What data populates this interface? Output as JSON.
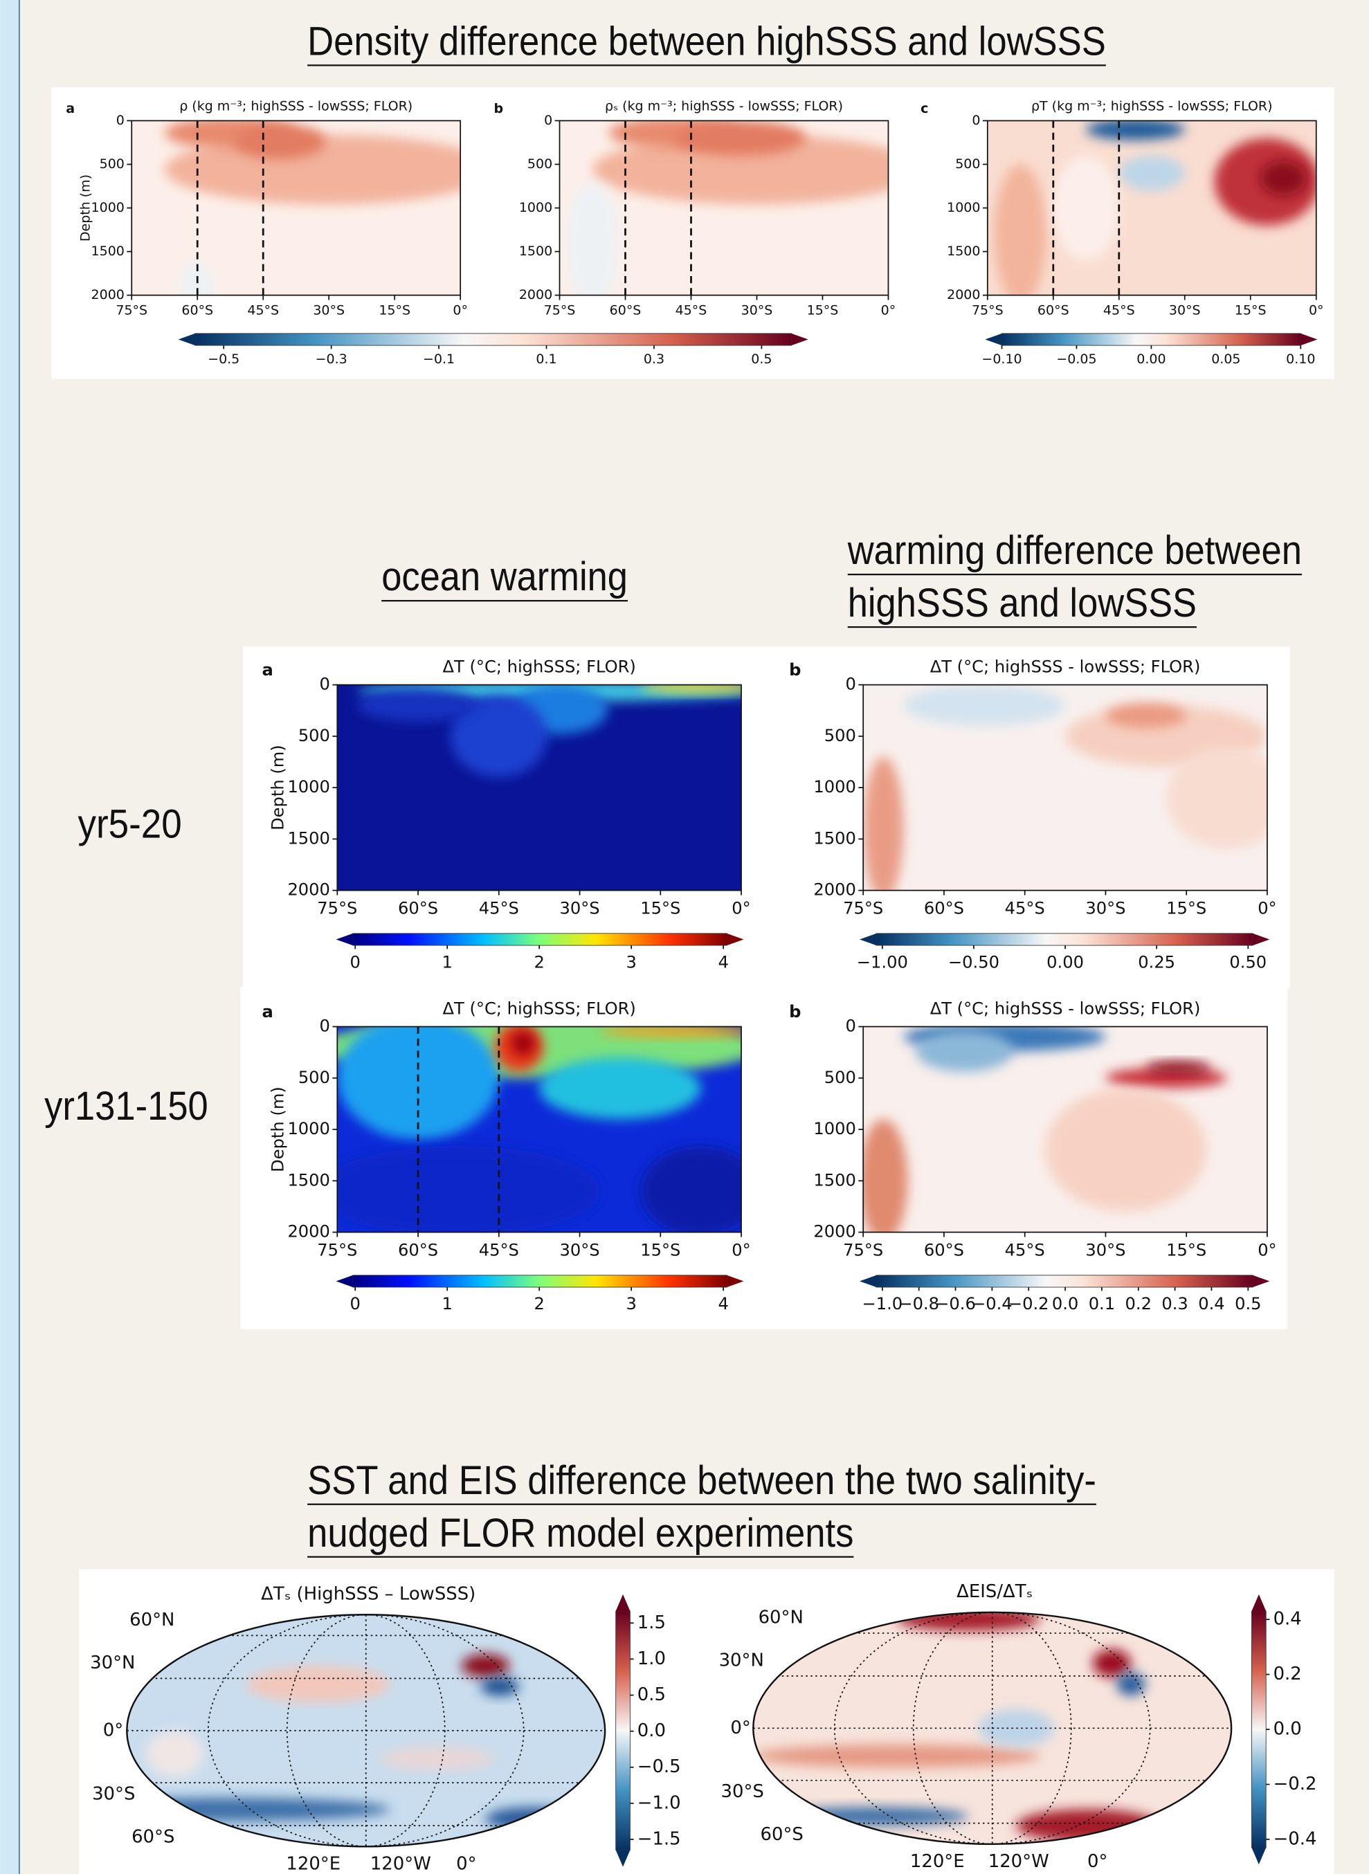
{
  "sections": [
    {
      "title": "Density difference between highSSS and lowSSS",
      "panels": [
        {
          "letter": "a",
          "title": "ρ (kg m⁻³; highSSS - lowSSS; FLOR)",
          "ylabel": "Depth (m)"
        },
        {
          "letter": "b",
          "title": "ρₛ (kg m⁻³; highSSS - lowSSS; FLOR)"
        },
        {
          "letter": "c",
          "title": "ρT (kg m⁻³; highSSS - lowSSS; FLOR)"
        }
      ],
      "colorbars": [
        [
          "−0.5",
          "−0.3",
          "−0.1",
          "0.1",
          "0.3",
          "0.5"
        ],
        [
          "−0.10",
          "−0.05",
          "0.00",
          "0.05",
          "0.10"
        ]
      ]
    },
    {
      "headings": [
        [
          "ocean warming"
        ],
        [
          "warming difference between",
          "highSSS and lowSSS"
        ]
      ],
      "rows": [
        {
          "label": "yr5-20",
          "panels": [
            {
              "letter": "a",
              "title": "ΔT (°C; highSSS; FLOR)",
              "ylabel": "Depth (m)"
            },
            {
              "letter": "b",
              "title": "ΔT (°C; highSSS - lowSSS; FLOR)"
            }
          ],
          "colorbars": [
            [
              "0",
              "1",
              "2",
              "3",
              "4"
            ],
            [
              "−1.00",
              "−0.50",
              "0.00",
              "0.25",
              "0.50"
            ]
          ]
        },
        {
          "label": "yr131-150",
          "panels": [
            {
              "letter": "a",
              "title": "ΔT (°C; highSSS; FLOR)",
              "ylabel": "Depth (m)"
            },
            {
              "letter": "b",
              "title": "ΔT (°C; highSSS - lowSSS; FLOR)"
            }
          ],
          "colorbars": [
            [
              "0",
              "1",
              "2",
              "3",
              "4"
            ],
            [
              "−1.0",
              "−0.8",
              "−0.6",
              "−0.4",
              "−0.2",
              "0.0",
              "0.1",
              "0.2",
              "0.3",
              "0.4",
              "0.5"
            ]
          ]
        }
      ]
    },
    {
      "title_lines": [
        "SST and EIS difference between the two salinity-",
        "nudged FLOR model experiments"
      ],
      "maps": [
        {
          "title": "ΔTₛ (HighSSS – LowSSS)",
          "colorbar": [
            "1.5",
            "1.0",
            "0.5",
            "0.0",
            "−0.5",
            "−1.0",
            "−1.5"
          ]
        },
        {
          "title": "ΔEIS/ΔTₛ",
          "colorbar": [
            "0.4",
            "0.2",
            "0.0",
            "−0.2",
            "−0.4"
          ]
        }
      ]
    }
  ],
  "depth_ticks": [
    "0",
    "500",
    "1000",
    "1500",
    "2000"
  ],
  "lat_ticks": [
    "75°S",
    "60°S",
    "45°S",
    "30°S",
    "15°S",
    "0°"
  ],
  "map_lat_labels": [
    "60°N",
    "30°N",
    "0°",
    "30°S",
    "60°S"
  ],
  "map_lon_labels": [
    "120°E",
    "120°W",
    "0°"
  ]
}
